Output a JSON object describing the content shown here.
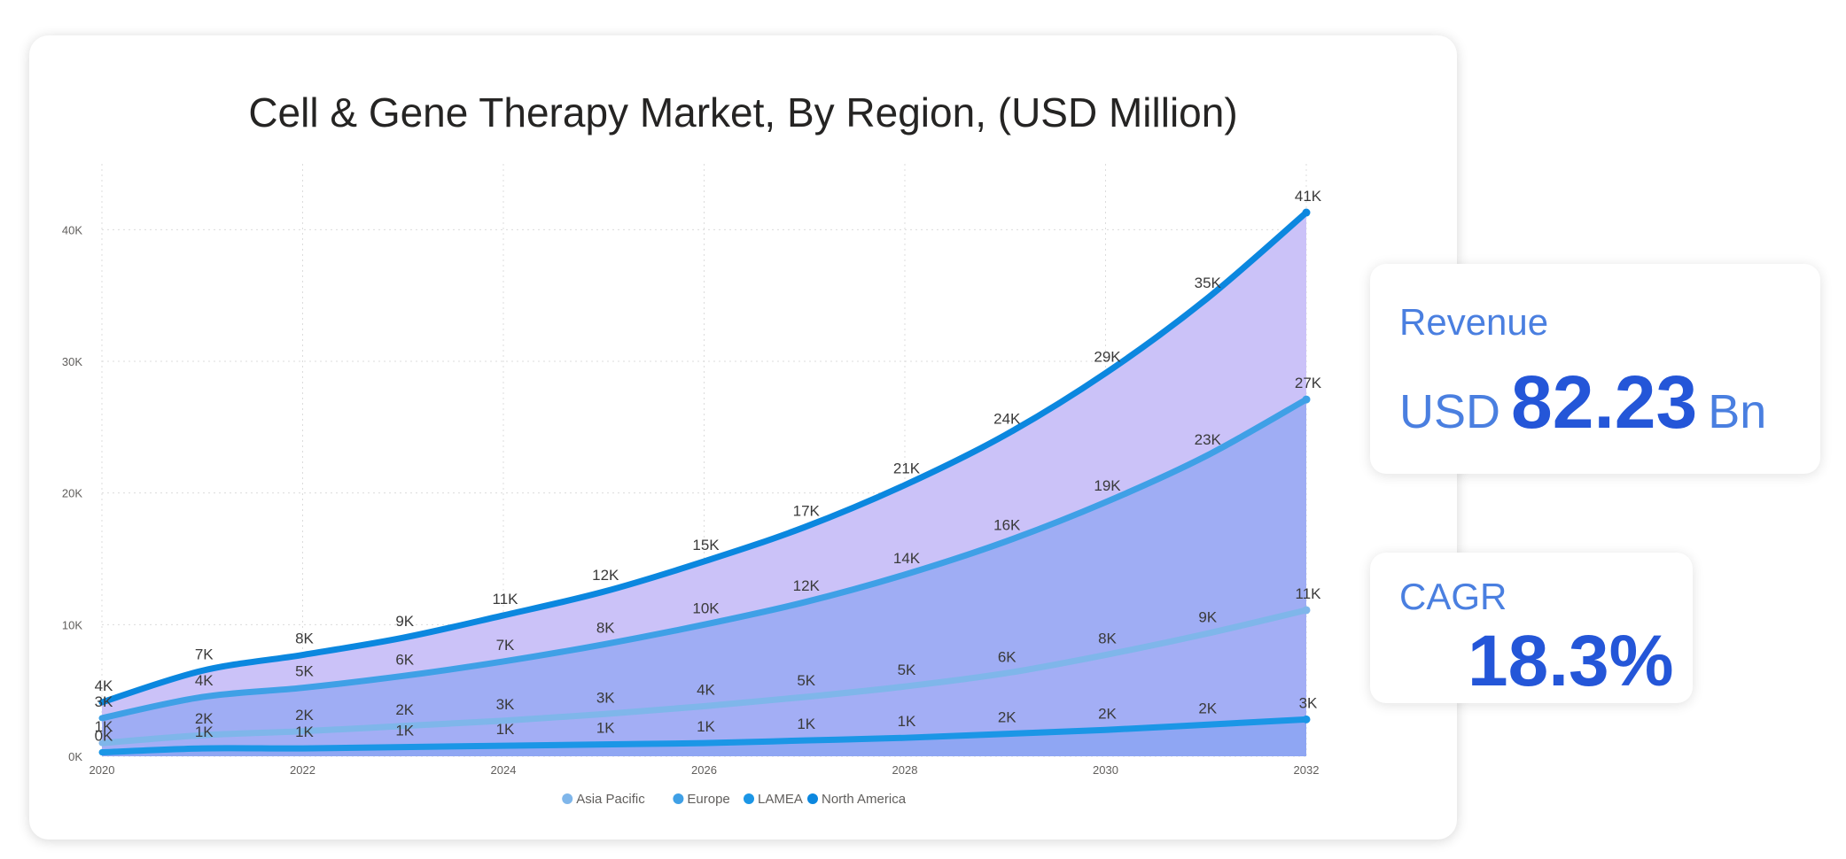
{
  "chart_data": {
    "type": "area",
    "title": "Cell & Gene Therapy Market, By Region, (USD Million)",
    "x": [
      2020,
      2021,
      2022,
      2023,
      2024,
      2025,
      2026,
      2027,
      2028,
      2029,
      2030,
      2031,
      2032
    ],
    "x_ticks": [
      "2020",
      "2022",
      "2024",
      "2026",
      "2028",
      "2030",
      "2032"
    ],
    "y_ticks": [
      "0K",
      "10K",
      "20K",
      "30K",
      "40K"
    ],
    "ylim": [
      0,
      45000
    ],
    "grid": true,
    "legend_position": "bottom",
    "series": [
      {
        "name": "Asia Pacific",
        "color": "#7fb6ea",
        "fill": "#a3aef5",
        "values": [
          1000,
          1600,
          1900,
          2300,
          2700,
          3200,
          3800,
          4500,
          5300,
          6300,
          7700,
          9300,
          11100
        ],
        "labels": [
          "1K",
          "2K",
          "2K",
          "2K",
          "3K",
          "3K",
          "4K",
          "5K",
          "5K",
          "6K",
          "8K",
          "9K",
          "11K"
        ]
      },
      {
        "name": "Europe",
        "color": "#3fa0e6",
        "fill": "#9fadf4",
        "values": [
          2900,
          4500,
          5200,
          6100,
          7200,
          8500,
          10000,
          11700,
          13800,
          16300,
          19300,
          22800,
          27100
        ],
        "labels": [
          "3K",
          "4K",
          "5K",
          "6K",
          "7K",
          "8K",
          "10K",
          "12K",
          "14K",
          "16K",
          "19K",
          "23K",
          "27K"
        ]
      },
      {
        "name": "LAMEA",
        "color": "#1b96e6",
        "fill": "#8fa6f3",
        "values": [
          300,
          600,
          600,
          700,
          800,
          900,
          1000,
          1200,
          1400,
          1700,
          2000,
          2400,
          2800
        ],
        "labels": [
          "0K",
          "1K",
          "1K",
          "1K",
          "1K",
          "1K",
          "1K",
          "1K",
          "1K",
          "2K",
          "2K",
          "2K",
          "3K"
        ]
      },
      {
        "name": "North America",
        "color": "#0b87df",
        "fill": "#cbc2f8",
        "values": [
          4100,
          6500,
          7700,
          9000,
          10700,
          12500,
          14800,
          17400,
          20600,
          24400,
          29100,
          34700,
          41300
        ],
        "labels": [
          "4K",
          "7K",
          "8K",
          "9K",
          "11K",
          "12K",
          "15K",
          "17K",
          "21K",
          "24K",
          "29K",
          "35K",
          "41K"
        ]
      }
    ]
  },
  "revenue": {
    "label": "Revenue",
    "currency": "USD",
    "value": "82.23",
    "unit": "Bn"
  },
  "cagr": {
    "label": "CAGR",
    "value": "18.3%"
  }
}
